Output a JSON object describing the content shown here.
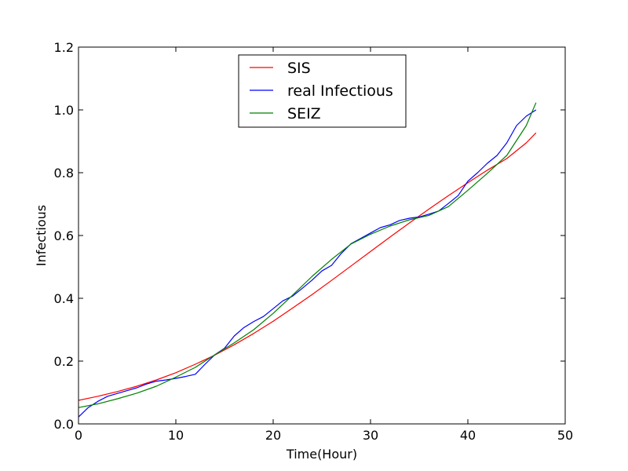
{
  "chart_data": {
    "type": "line",
    "xlabel": "Time(Hour)",
    "ylabel": "Infectious",
    "xlim": [
      0,
      50
    ],
    "ylim": [
      0.0,
      1.2
    ],
    "xticks": [
      "0",
      "10",
      "20",
      "30",
      "40",
      "50"
    ],
    "yticks": [
      "0.0",
      "0.2",
      "0.4",
      "0.6",
      "0.8",
      "1.0",
      "1.2"
    ],
    "legend_position": "upper-center",
    "grid": false,
    "series": [
      {
        "name": "SIS",
        "color": "#ff0000",
        "x": [
          0,
          2,
          4,
          6,
          8,
          10,
          12,
          14,
          16,
          18,
          20,
          22,
          24,
          26,
          28,
          30,
          32,
          34,
          36,
          38,
          40,
          42,
          44,
          46,
          47
        ],
        "y": [
          0.075,
          0.088,
          0.103,
          0.12,
          0.14,
          0.163,
          0.19,
          0.219,
          0.252,
          0.288,
          0.327,
          0.369,
          0.412,
          0.457,
          0.503,
          0.549,
          0.595,
          0.64,
          0.684,
          0.727,
          0.768,
          0.808,
          0.845,
          0.895,
          0.927
        ]
      },
      {
        "name": "real Infectious",
        "color": "#0000ff",
        "x": [
          0,
          1,
          2,
          3,
          4,
          5,
          6,
          7,
          8,
          9,
          10,
          11,
          12,
          13,
          14,
          15,
          16,
          17,
          18,
          19,
          20,
          21,
          22,
          23,
          24,
          25,
          26,
          27,
          28,
          29,
          30,
          31,
          32,
          33,
          34,
          35,
          36,
          37,
          38,
          39,
          40,
          41,
          42,
          43,
          44,
          45,
          46,
          47
        ],
        "y": [
          0.022,
          0.052,
          0.072,
          0.088,
          0.097,
          0.106,
          0.115,
          0.127,
          0.136,
          0.14,
          0.145,
          0.151,
          0.158,
          0.19,
          0.22,
          0.241,
          0.28,
          0.307,
          0.326,
          0.342,
          0.367,
          0.392,
          0.407,
          0.432,
          0.458,
          0.487,
          0.505,
          0.543,
          0.574,
          0.591,
          0.608,
          0.625,
          0.634,
          0.648,
          0.655,
          0.659,
          0.668,
          0.678,
          0.702,
          0.727,
          0.773,
          0.8,
          0.83,
          0.855,
          0.895,
          0.95,
          0.98,
          1.0
        ]
      },
      {
        "name": "SEIZ",
        "color": "#008000",
        "x": [
          0,
          2,
          4,
          6,
          8,
          10,
          12,
          14,
          16,
          18,
          20,
          22,
          24,
          26,
          28,
          30,
          32,
          34,
          36,
          38,
          40,
          42,
          44,
          46,
          47
        ],
        "y": [
          0.052,
          0.064,
          0.08,
          0.098,
          0.12,
          0.149,
          0.18,
          0.22,
          0.258,
          0.3,
          0.352,
          0.41,
          0.47,
          0.524,
          0.573,
          0.604,
          0.63,
          0.65,
          0.664,
          0.692,
          0.744,
          0.798,
          0.855,
          0.95,
          1.023
        ]
      }
    ]
  }
}
